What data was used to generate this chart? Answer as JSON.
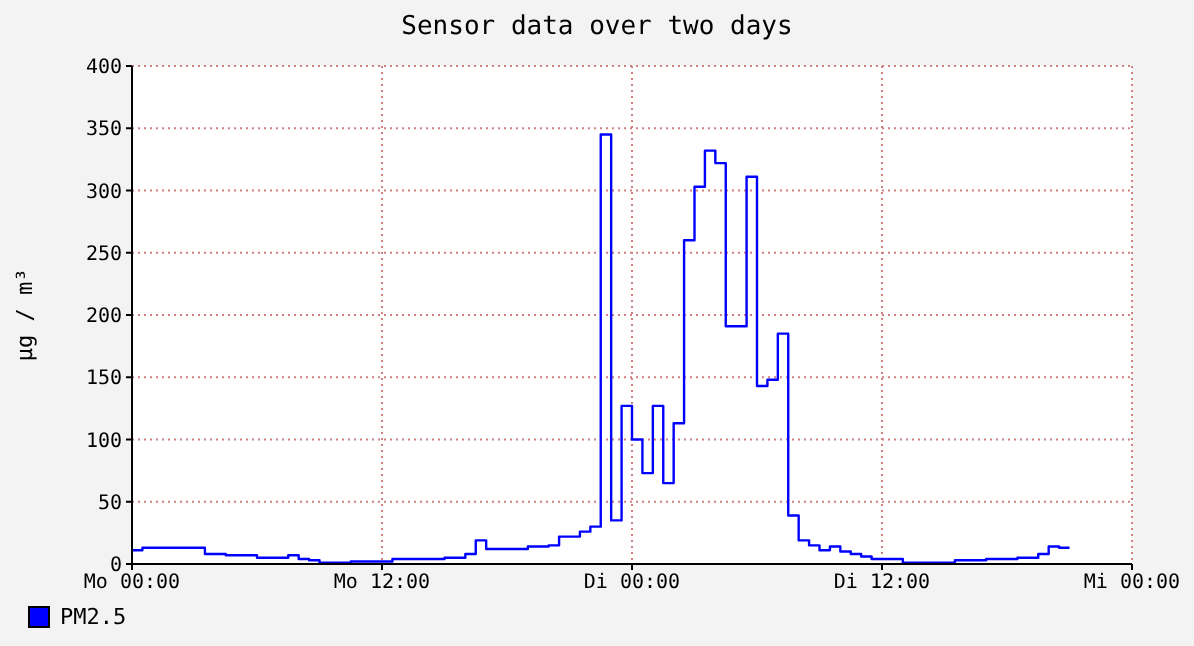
{
  "chart_data": {
    "type": "step",
    "title": "Sensor data over two days",
    "ylabel": "µg / m³",
    "categories": [
      "Mo 00:00",
      null,
      null,
      null,
      null,
      null,
      null,
      null,
      null,
      null,
      null,
      null,
      null,
      null,
      null,
      null,
      null,
      null,
      null,
      null,
      null,
      null,
      null,
      null,
      "Mo 12:00",
      null,
      null,
      null,
      null,
      null,
      null,
      null,
      null,
      null,
      null,
      null,
      null,
      null,
      null,
      null,
      null,
      null,
      null,
      null,
      null,
      null,
      null,
      null,
      "Di 00:00",
      null,
      null,
      null,
      null,
      null,
      null,
      null,
      null,
      null,
      null,
      null,
      null,
      null,
      null,
      null,
      null,
      null,
      null,
      null,
      null,
      null,
      null,
      null,
      "Di 12:00",
      null,
      null,
      null,
      null,
      null,
      null,
      null,
      null,
      null,
      null,
      null,
      null,
      null,
      null,
      null,
      null,
      null,
      null,
      null,
      null,
      null,
      null,
      null,
      "Mi 00:00"
    ],
    "ylim": [
      0,
      400
    ],
    "yticks": [
      0,
      50,
      100,
      150,
      200,
      250,
      300,
      350,
      400
    ],
    "grid": true,
    "legend": "bottom left",
    "series": [
      {
        "name": "PM2.5",
        "color": "#0000ff",
        "values": [
          11,
          13,
          13,
          13,
          13,
          13,
          13,
          8,
          8,
          7,
          7,
          7,
          5,
          5,
          5,
          7,
          4,
          3,
          1,
          1,
          1,
          2,
          2,
          2,
          2,
          4,
          4,
          4,
          4,
          4,
          5,
          5,
          8,
          19,
          12,
          12,
          12,
          12,
          14,
          14,
          15,
          22,
          22,
          26,
          30,
          345,
          35,
          127,
          100,
          73,
          127,
          65,
          113,
          260,
          303,
          332,
          322,
          191,
          191,
          311,
          143,
          148,
          185,
          39,
          19,
          15,
          11,
          14,
          10,
          8,
          6,
          4,
          4,
          4,
          1,
          1,
          1,
          1,
          1,
          3,
          3,
          3,
          4,
          4,
          4,
          5,
          5,
          8,
          14,
          13,
          13,
          null,
          null,
          null,
          null,
          null,
          null
        ]
      }
    ]
  }
}
